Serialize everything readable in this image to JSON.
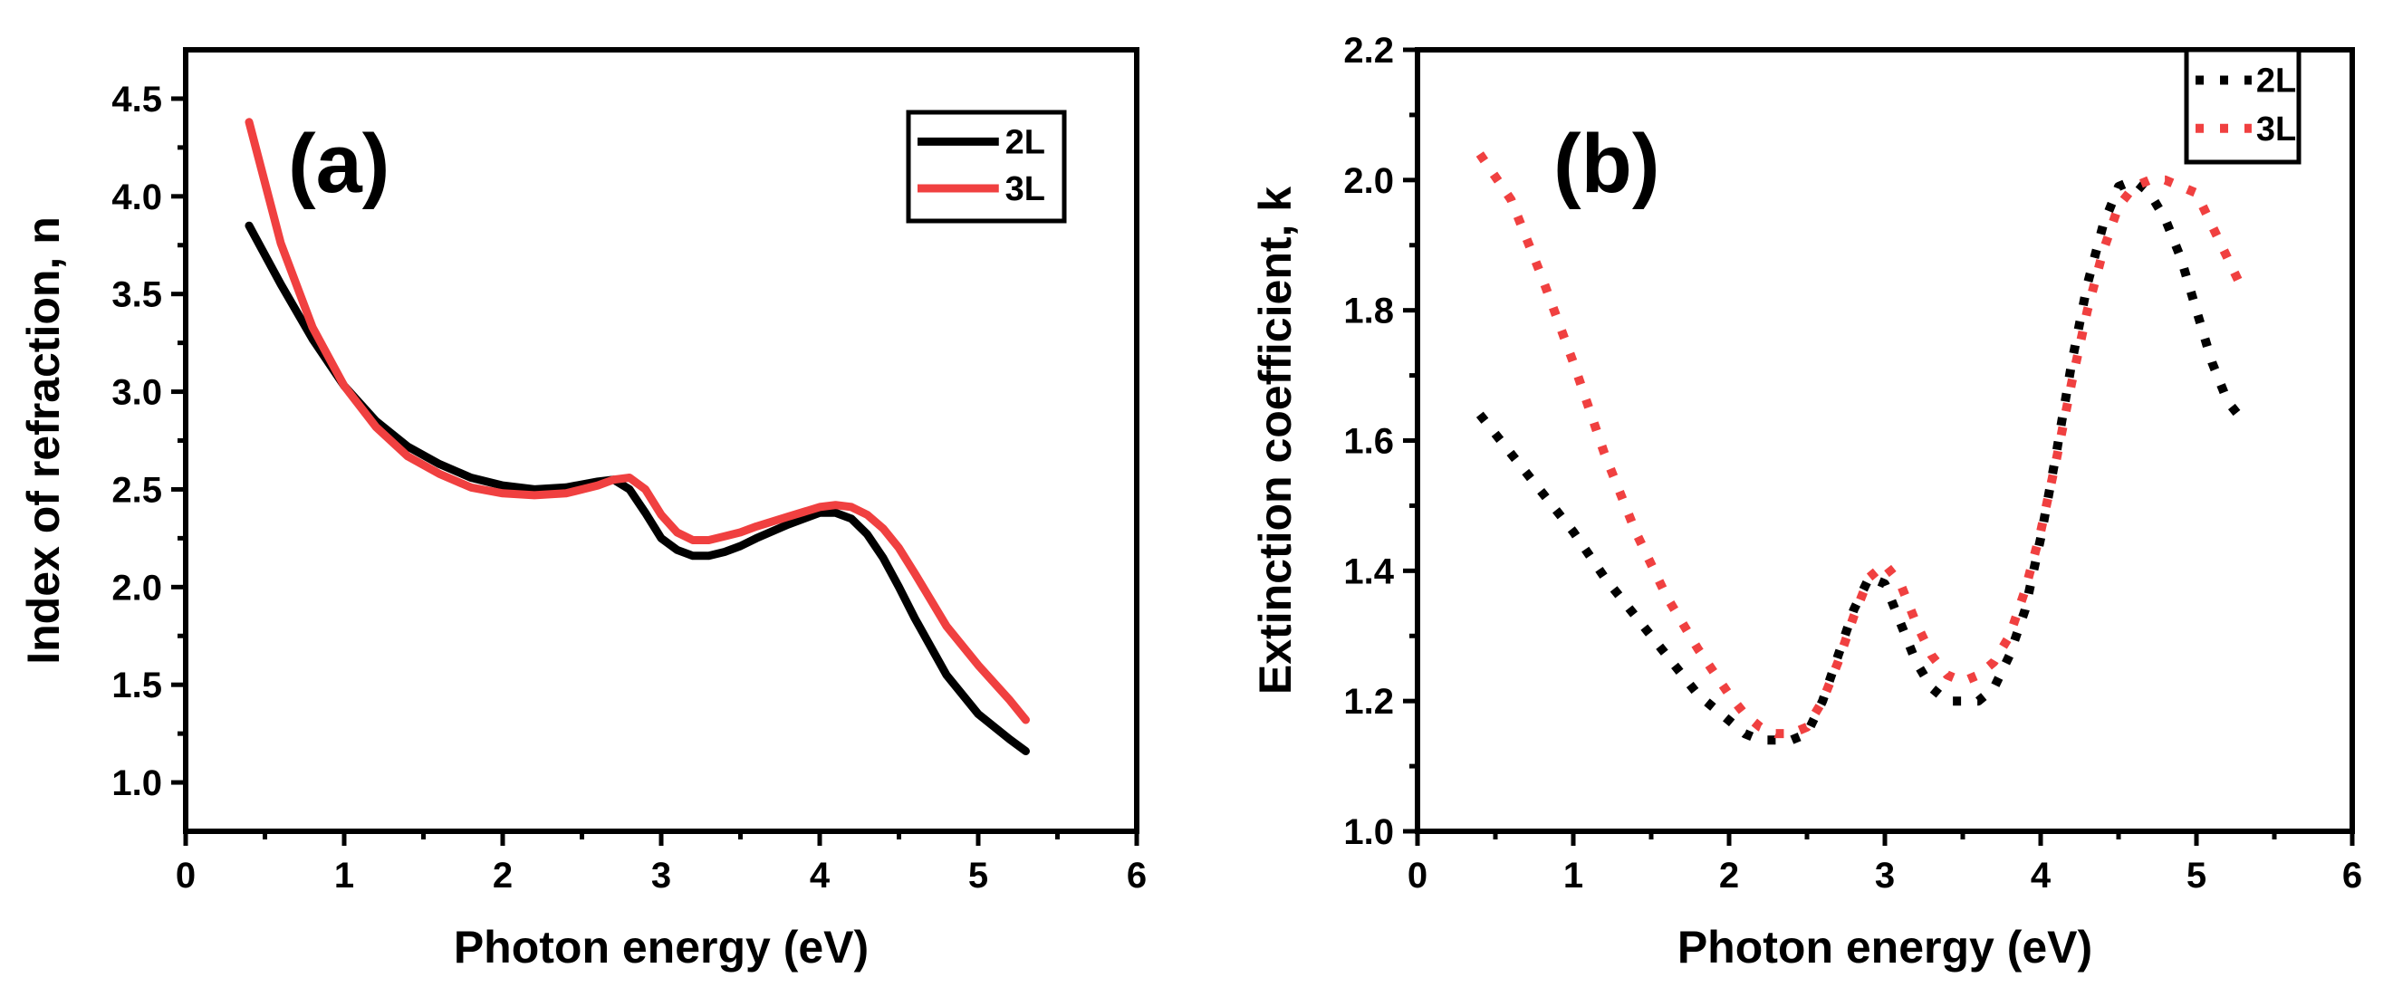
{
  "colors": {
    "series_2L": "#000000",
    "series_3L": "#f04040",
    "axis": "#000000"
  },
  "chart_data": [
    {
      "type": "line",
      "panel_label": "(a)",
      "xlabel": "Photon energy (eV)",
      "ylabel": "Index of refraction, n",
      "xlim": [
        0,
        6
      ],
      "ylim": [
        0.75,
        4.75
      ],
      "xticks": [
        0,
        1,
        2,
        3,
        4,
        5,
        6
      ],
      "yticks": [
        1.0,
        1.5,
        2.0,
        2.5,
        3.0,
        3.5,
        4.0,
        4.5
      ],
      "ytick_labels": [
        "1.0",
        "1.5",
        "2.0",
        "2.5",
        "3.0",
        "3.5",
        "4.0",
        "4.5"
      ],
      "line_style": "solid",
      "legend": {
        "position": "top-right",
        "entries": [
          "2L",
          "3L"
        ]
      },
      "series": [
        {
          "name": "2L",
          "x": [
            0.4,
            0.6,
            0.8,
            1.0,
            1.2,
            1.4,
            1.6,
            1.8,
            2.0,
            2.2,
            2.4,
            2.6,
            2.7,
            2.8,
            2.9,
            3.0,
            3.1,
            3.2,
            3.3,
            3.4,
            3.5,
            3.6,
            3.8,
            4.0,
            4.1,
            4.2,
            4.3,
            4.4,
            4.5,
            4.6,
            4.8,
            5.0,
            5.2,
            5.3
          ],
          "y": [
            3.85,
            3.55,
            3.27,
            3.03,
            2.85,
            2.72,
            2.63,
            2.56,
            2.52,
            2.5,
            2.51,
            2.54,
            2.55,
            2.5,
            2.38,
            2.25,
            2.19,
            2.16,
            2.16,
            2.18,
            2.21,
            2.25,
            2.32,
            2.38,
            2.38,
            2.35,
            2.27,
            2.15,
            2.0,
            1.84,
            1.55,
            1.35,
            1.22,
            1.16
          ]
        },
        {
          "name": "3L",
          "x": [
            0.4,
            0.6,
            0.8,
            1.0,
            1.2,
            1.4,
            1.6,
            1.8,
            2.0,
            2.2,
            2.4,
            2.6,
            2.7,
            2.8,
            2.9,
            3.0,
            3.1,
            3.2,
            3.3,
            3.4,
            3.5,
            3.6,
            3.8,
            4.0,
            4.1,
            4.2,
            4.3,
            4.4,
            4.5,
            4.6,
            4.8,
            5.0,
            5.2,
            5.3
          ],
          "y": [
            4.38,
            3.76,
            3.33,
            3.03,
            2.82,
            2.67,
            2.58,
            2.51,
            2.48,
            2.47,
            2.48,
            2.52,
            2.55,
            2.56,
            2.5,
            2.37,
            2.28,
            2.24,
            2.24,
            2.26,
            2.28,
            2.31,
            2.36,
            2.41,
            2.42,
            2.41,
            2.37,
            2.3,
            2.2,
            2.07,
            1.8,
            1.6,
            1.42,
            1.32
          ]
        }
      ]
    },
    {
      "type": "line",
      "panel_label": "(b)",
      "xlabel": "Photon energy (eV)",
      "ylabel": "Extinction coefficient, k",
      "xlim": [
        0,
        6
      ],
      "ylim": [
        1.0,
        2.2
      ],
      "xticks": [
        0,
        1,
        2,
        3,
        4,
        5,
        6
      ],
      "yticks": [
        1.0,
        1.2,
        1.4,
        1.6,
        1.8,
        2.0,
        2.2
      ],
      "ytick_labels": [
        "1.0",
        "1.2",
        "1.4",
        "1.6",
        "1.8",
        "2.0",
        "2.2"
      ],
      "line_style": "dashed",
      "legend": {
        "position": "top-right",
        "entries": [
          "2L",
          "3L"
        ]
      },
      "series": [
        {
          "name": "2L",
          "x": [
            0.4,
            0.6,
            0.8,
            1.0,
            1.2,
            1.4,
            1.6,
            1.8,
            2.0,
            2.1,
            2.2,
            2.3,
            2.4,
            2.5,
            2.6,
            2.7,
            2.8,
            2.9,
            3.0,
            3.1,
            3.2,
            3.3,
            3.4,
            3.5,
            3.6,
            3.7,
            3.8,
            3.9,
            4.0,
            4.1,
            4.2,
            4.3,
            4.4,
            4.5,
            4.6,
            4.7,
            4.8,
            4.9,
            5.0,
            5.1,
            5.2,
            5.3
          ],
          "y": [
            1.64,
            1.58,
            1.52,
            1.46,
            1.39,
            1.33,
            1.27,
            1.21,
            1.17,
            1.15,
            1.14,
            1.14,
            1.14,
            1.15,
            1.2,
            1.27,
            1.34,
            1.39,
            1.38,
            1.32,
            1.26,
            1.22,
            1.2,
            1.2,
            1.2,
            1.22,
            1.27,
            1.34,
            1.45,
            1.58,
            1.72,
            1.84,
            1.93,
            1.99,
            2.0,
            1.98,
            1.94,
            1.88,
            1.8,
            1.72,
            1.66,
            1.63
          ]
        },
        {
          "name": "3L",
          "x": [
            0.4,
            0.6,
            0.8,
            1.0,
            1.2,
            1.4,
            1.6,
            1.8,
            2.0,
            2.1,
            2.2,
            2.3,
            2.4,
            2.5,
            2.6,
            2.7,
            2.8,
            2.9,
            3.0,
            3.1,
            3.2,
            3.3,
            3.4,
            3.5,
            3.6,
            3.7,
            3.8,
            3.9,
            4.0,
            4.1,
            4.2,
            4.3,
            4.4,
            4.5,
            4.6,
            4.7,
            4.8,
            4.9,
            5.0,
            5.1,
            5.2,
            5.3
          ],
          "y": [
            2.04,
            1.97,
            1.85,
            1.72,
            1.58,
            1.46,
            1.36,
            1.28,
            1.21,
            1.18,
            1.16,
            1.15,
            1.15,
            1.16,
            1.2,
            1.26,
            1.33,
            1.39,
            1.41,
            1.38,
            1.32,
            1.27,
            1.24,
            1.23,
            1.24,
            1.26,
            1.3,
            1.37,
            1.46,
            1.57,
            1.69,
            1.8,
            1.89,
            1.96,
            1.99,
            2.0,
            2.0,
            1.99,
            1.98,
            1.93,
            1.88,
            1.83
          ]
        }
      ]
    }
  ]
}
